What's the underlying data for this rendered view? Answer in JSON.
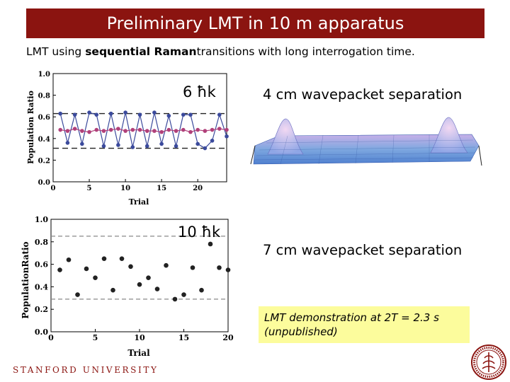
{
  "slide": {
    "title": "Preliminary LMT in 10 m apparatus",
    "subtitle_pre": "LMT using ",
    "subtitle_bold": "sequential Raman",
    "subtitle_post": "transitions with long interrogation time.",
    "label_6hk": "6 ħk",
    "label_10hk": "10 ħk",
    "sep_4cm": "4 cm wavepacket separation",
    "sep_7cm": "7 cm wavepacket separation",
    "note_line1": "LMT demonstration at 2T = 2.3 s",
    "note_line2": "(unpublished)",
    "footer": "STANFORD UNIVERSITY"
  },
  "colors": {
    "title_bg": "#8b1410",
    "series_blue": "#3b4a9c",
    "series_magenta": "#b0407a",
    "note_bg": "#fcfc9c",
    "surface": "#7ea8e0"
  },
  "chart_data": [
    {
      "type": "line",
      "xlabel": "Trial",
      "ylabel": "Population Ratio",
      "xlim": [
        0,
        24
      ],
      "ylim": [
        0,
        1
      ],
      "x_ticks": [
        "0",
        "5",
        "10",
        "15",
        "20"
      ],
      "y_ticks": [
        "0.0",
        "0.2",
        "0.4",
        "0.6",
        "0.8",
        "1.0"
      ],
      "reference_lines": [
        0.63,
        0.31
      ],
      "series": [
        {
          "x": [
            1,
            2,
            3,
            4,
            5,
            6,
            7,
            8,
            9,
            10,
            11,
            12,
            13,
            14,
            15,
            16,
            17,
            18,
            19,
            20,
            21,
            22,
            23,
            24
          ],
          "values": [
            0.63,
            0.36,
            0.62,
            0.35,
            0.64,
            0.62,
            0.33,
            0.63,
            0.34,
            0.64,
            0.32,
            0.62,
            0.33,
            0.64,
            0.35,
            0.61,
            0.33,
            0.62,
            0.62,
            0.35,
            0.31,
            0.38,
            0.62,
            0.42
          ]
        },
        {
          "x": [
            1,
            2,
            3,
            4,
            5,
            6,
            7,
            8,
            9,
            10,
            11,
            12,
            13,
            14,
            15,
            16,
            17,
            18,
            19,
            20,
            21,
            22,
            23,
            24
          ],
          "values": [
            0.48,
            0.47,
            0.49,
            0.47,
            0.46,
            0.48,
            0.47,
            0.48,
            0.49,
            0.47,
            0.48,
            0.48,
            0.47,
            0.47,
            0.46,
            0.48,
            0.47,
            0.48,
            0.46,
            0.48,
            0.47,
            0.48,
            0.49,
            0.48
          ]
        }
      ]
    },
    {
      "type": "scatter",
      "xlabel": "Trial",
      "ylabel": "PopulationRatio",
      "xlim": [
        0,
        20
      ],
      "ylim": [
        0,
        1
      ],
      "x_ticks": [
        "0",
        "5",
        "10",
        "15",
        "20"
      ],
      "y_ticks": [
        "0.0",
        "0.2",
        "0.4",
        "0.6",
        "0.8",
        "1.0"
      ],
      "reference_lines": [
        0.85,
        0.29
      ],
      "series": [
        {
          "x": [
            1,
            2,
            3,
            4,
            5,
            6,
            7,
            8,
            9,
            10,
            11,
            12,
            13,
            14,
            15,
            16,
            17,
            18,
            19,
            20
          ],
          "values": [
            0.55,
            0.64,
            0.33,
            0.56,
            0.48,
            0.65,
            0.37,
            0.65,
            0.58,
            0.42,
            0.48,
            0.38,
            0.59,
            0.29,
            0.33,
            0.57,
            0.37,
            0.78,
            0.57,
            0.55
          ]
        }
      ]
    }
  ]
}
